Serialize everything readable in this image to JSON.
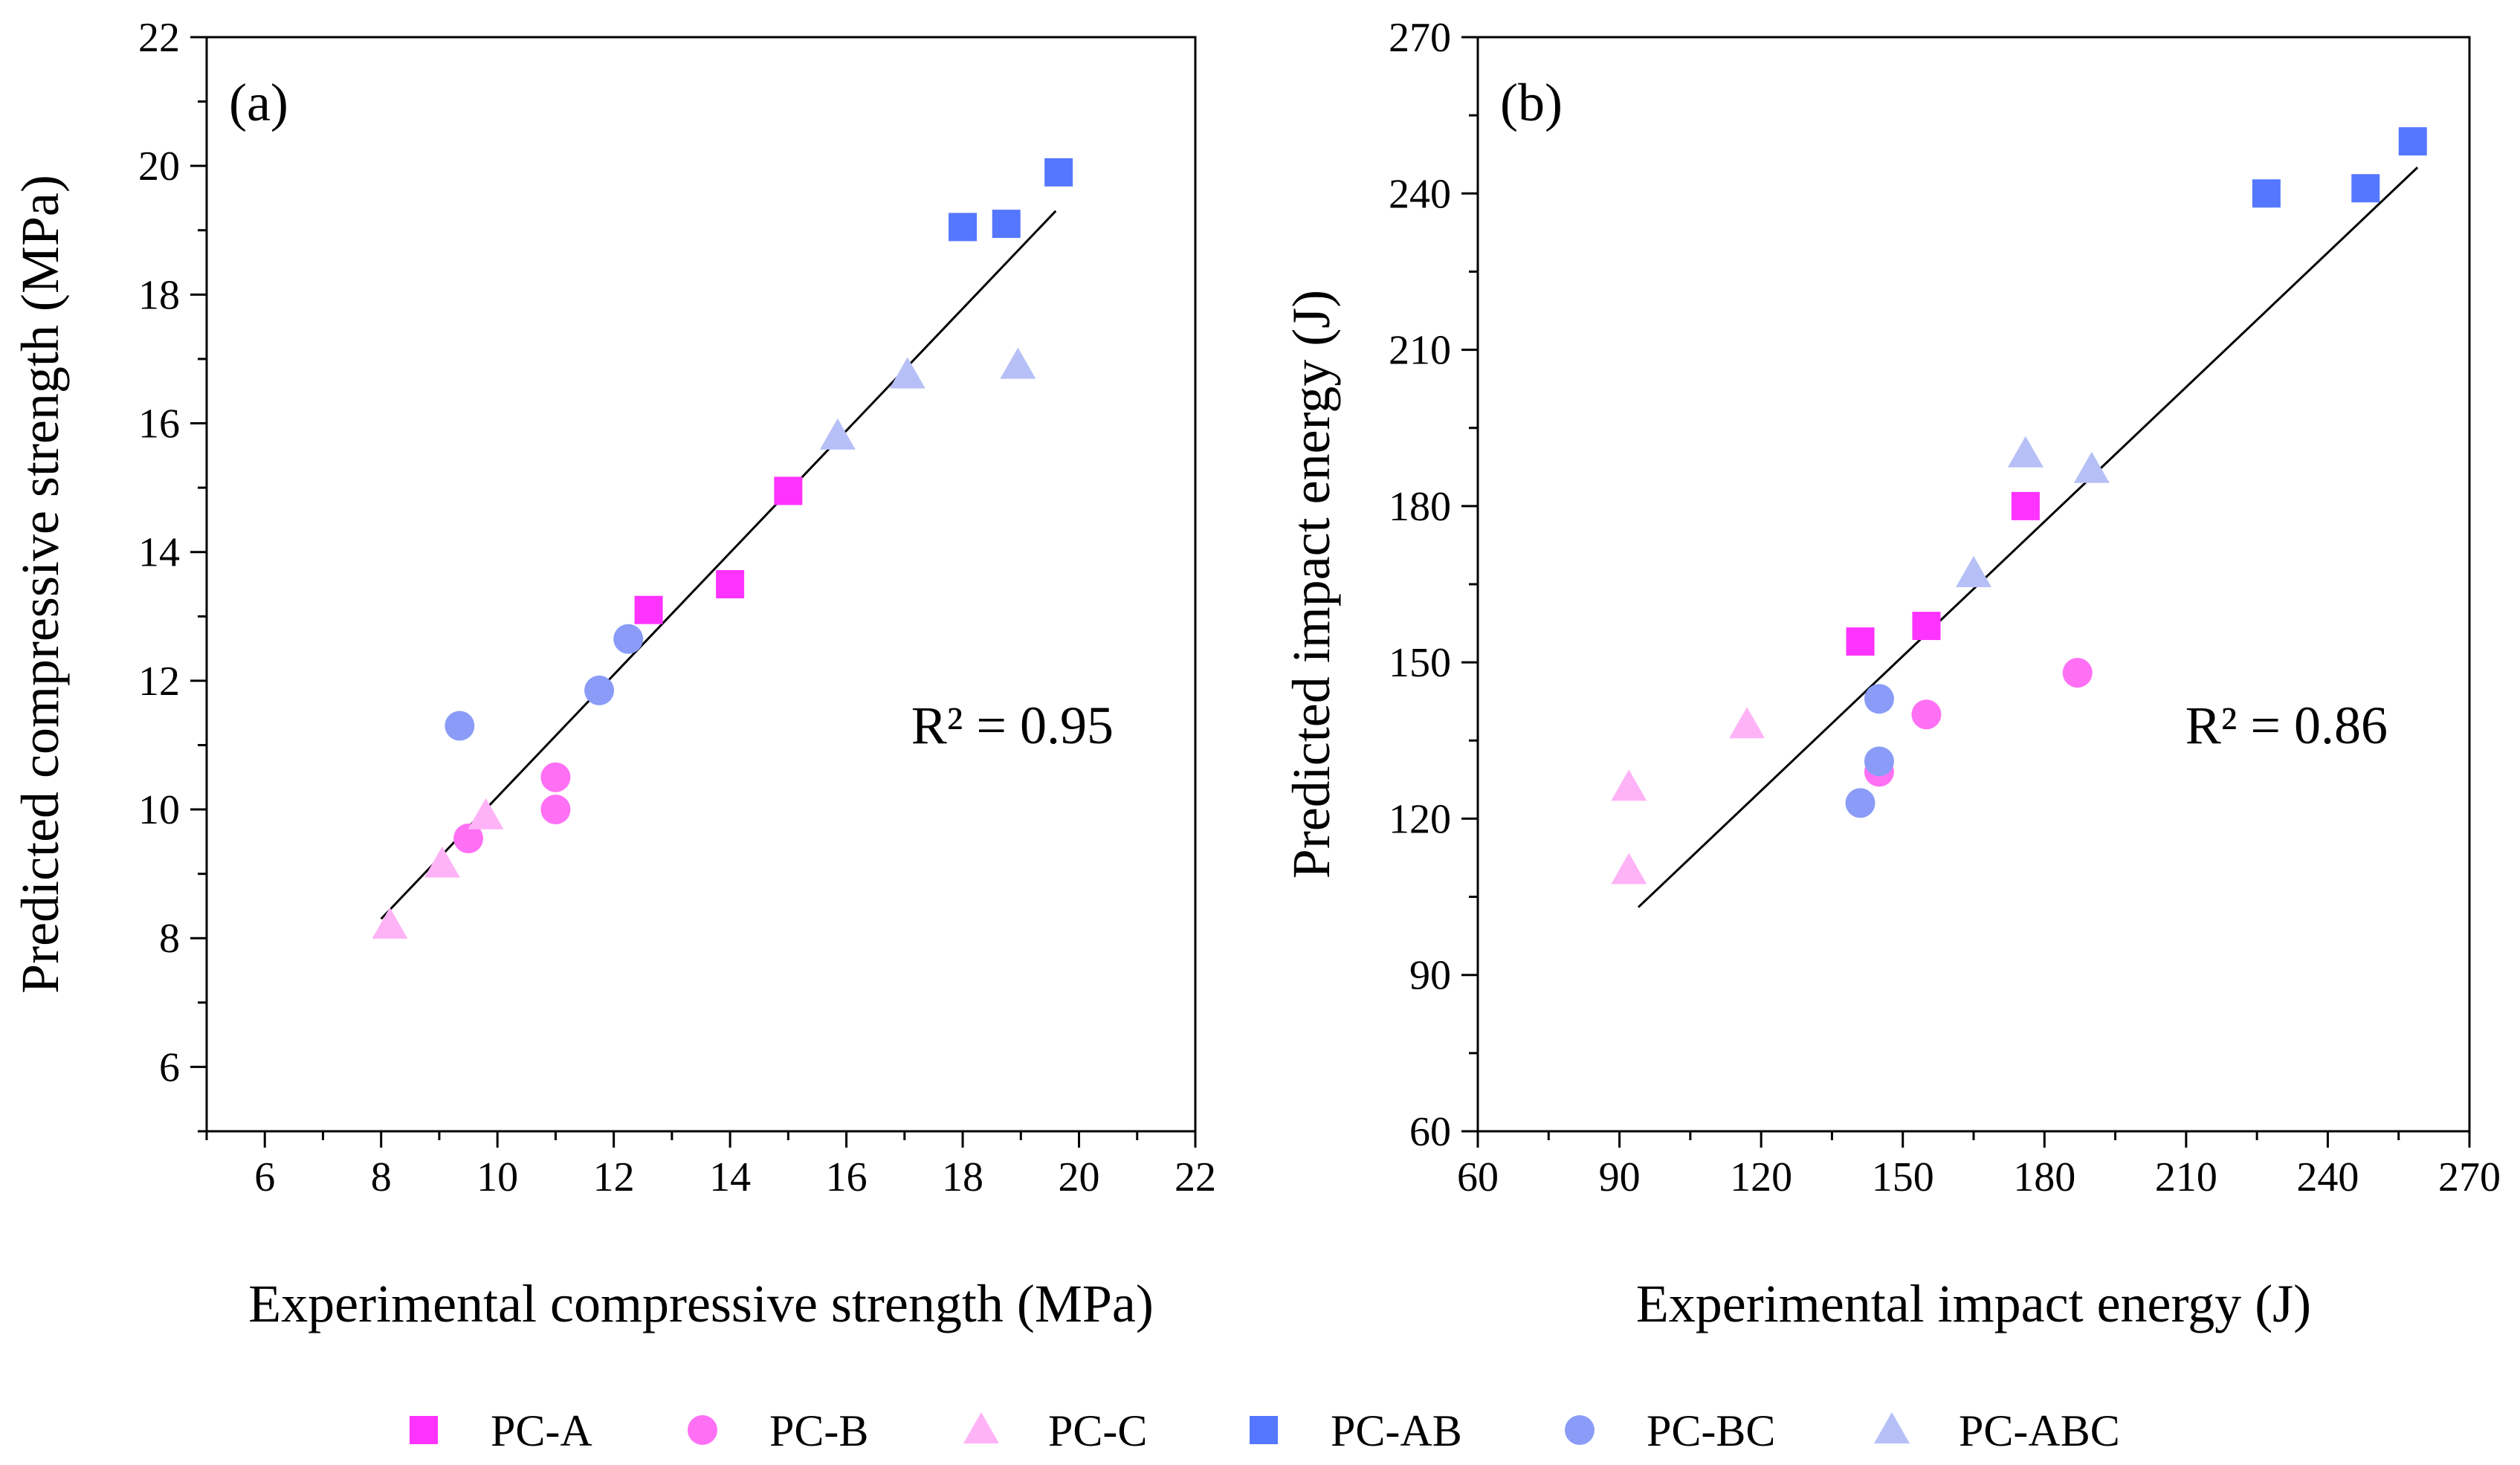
{
  "chart_data": [
    {
      "type": "scatter",
      "panel_label": "(a)",
      "xlabel": "Experimental compressive strength (MPa)",
      "ylabel": "Predicted compressive strength (MPa)",
      "xlim": [
        5,
        22
      ],
      "ylim": [
        5,
        22
      ],
      "x_ticks": [
        "6",
        "8",
        "10",
        "12",
        "14",
        "16",
        "18",
        "20",
        "22"
      ],
      "y_ticks": [
        "6",
        "8",
        "10",
        "12",
        "14",
        "16",
        "18",
        "20",
        "22"
      ],
      "x_tick_values": [
        6,
        8,
        10,
        12,
        14,
        16,
        18,
        20,
        22
      ],
      "y_tick_values": [
        6,
        8,
        10,
        12,
        14,
        16,
        18,
        20,
        22
      ],
      "annotation": "R² = 0.95",
      "fit_line": {
        "x": [
          8.0,
          19.6
        ],
        "y": [
          8.3,
          19.3
        ]
      },
      "series": [
        {
          "name": "PC-A",
          "points": [
            [
              12.6,
              13.1
            ],
            [
              14.0,
              13.5
            ],
            [
              15.0,
              14.95
            ]
          ]
        },
        {
          "name": "PC-B",
          "points": [
            [
              9.5,
              9.55
            ],
            [
              11.0,
              10.0
            ],
            [
              11.0,
              10.5
            ]
          ]
        },
        {
          "name": "PC-C",
          "points": [
            [
              8.15,
              8.2
            ],
            [
              9.05,
              9.15
            ],
            [
              9.8,
              9.9
            ]
          ]
        },
        {
          "name": "PC-AB",
          "points": [
            [
              18.0,
              19.05
            ],
            [
              18.75,
              19.1
            ],
            [
              19.65,
              19.9
            ]
          ]
        },
        {
          "name": "PC-BC",
          "points": [
            [
              9.35,
              11.3
            ],
            [
              11.75,
              11.85
            ],
            [
              12.25,
              12.65
            ]
          ]
        },
        {
          "name": "PC-ABC",
          "points": [
            [
              15.85,
              15.8
            ],
            [
              17.05,
              16.75
            ],
            [
              18.95,
              16.9
            ]
          ]
        }
      ]
    },
    {
      "type": "scatter",
      "panel_label": "(b)",
      "xlabel": "Experimental impact energy (J)",
      "ylabel": "Predicted impact energy (J)",
      "xlim": [
        60,
        270
      ],
      "ylim": [
        60,
        270
      ],
      "x_ticks": [
        "60",
        "90",
        "120",
        "150",
        "180",
        "210",
        "240",
        "270"
      ],
      "y_ticks": [
        "60",
        "90",
        "120",
        "150",
        "180",
        "210",
        "240",
        "270"
      ],
      "x_tick_values": [
        60,
        90,
        120,
        150,
        180,
        210,
        240,
        270
      ],
      "y_tick_values": [
        60,
        90,
        120,
        150,
        180,
        210,
        240,
        270
      ],
      "annotation": "R² = 0.86",
      "fit_line": {
        "x": [
          94,
          259
        ],
        "y": [
          103,
          245
        ]
      },
      "series": [
        {
          "name": "PC-A",
          "points": [
            [
              141,
              154
            ],
            [
              155,
              157
            ],
            [
              176,
              180
            ]
          ]
        },
        {
          "name": "PC-B",
          "points": [
            [
              145,
              129
            ],
            [
              155,
              140
            ],
            [
              187,
              148
            ]
          ]
        },
        {
          "name": "PC-C",
          "points": [
            [
              92,
              110
            ],
            [
              92,
              126
            ],
            [
              117,
              138
            ]
          ]
        },
        {
          "name": "PC-AB",
          "points": [
            [
              227,
              240
            ],
            [
              248,
              241
            ],
            [
              258,
              250
            ]
          ]
        },
        {
          "name": "PC-BC",
          "points": [
            [
              141,
              123
            ],
            [
              145,
              131
            ],
            [
              145,
              143
            ]
          ]
        },
        {
          "name": "PC-ABC",
          "points": [
            [
              165,
              167
            ],
            [
              176,
              190
            ],
            [
              190,
              187
            ]
          ]
        }
      ]
    }
  ],
  "legend": [
    {
      "name": "PC-A",
      "marker": "square",
      "color": "#ff33ff"
    },
    {
      "name": "PC-B",
      "marker": "circle",
      "color": "#ff70f5"
    },
    {
      "name": "PC-C",
      "marker": "triangle",
      "color": "#ffb3f7"
    },
    {
      "name": "PC-AB",
      "marker": "square",
      "color": "#5577ff"
    },
    {
      "name": "PC-BC",
      "marker": "circle",
      "color": "#8a9cf7"
    },
    {
      "name": "PC-ABC",
      "marker": "triangle",
      "color": "#b6c0f7"
    }
  ]
}
